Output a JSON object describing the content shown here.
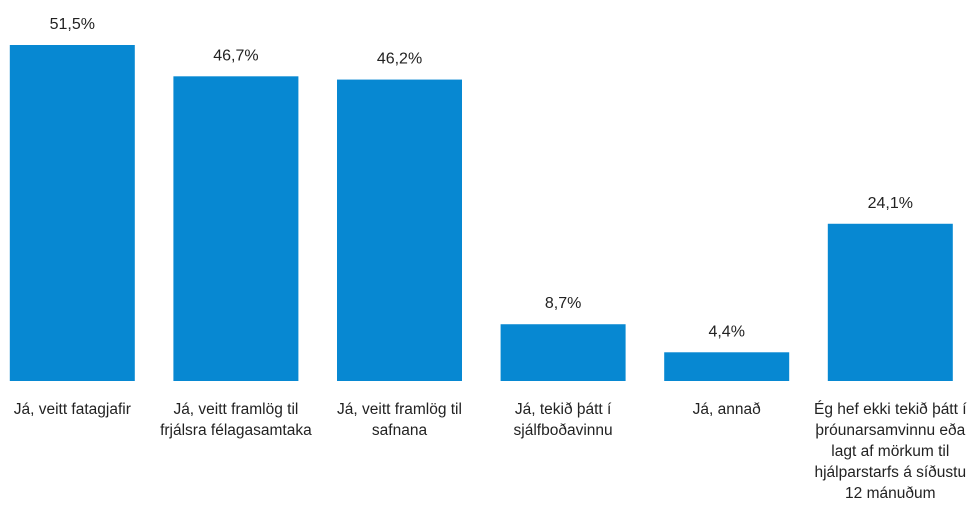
{
  "chart_data": {
    "type": "bar",
    "categories": [
      "Já, veitt fatagjafir",
      "Já, veitt framlög til frjálsra félagasamtaka",
      "Já, veitt framlög til safnana",
      "Já, tekið þátt í sjálfboðavinnu",
      "Já, annað",
      "Ég hef ekki tekið þátt í þróunarsamvinnu eða lagt af mörkum til hjálparstarfs á síðustu 12 mánuðum"
    ],
    "values": [
      51.5,
      46.7,
      46.2,
      8.7,
      4.4,
      24.1
    ],
    "value_labels": [
      "51,5%",
      "46,7%",
      "46,2%",
      "8,7%",
      "4,4%",
      "24,1%"
    ],
    "color": "#0788d2"
  }
}
